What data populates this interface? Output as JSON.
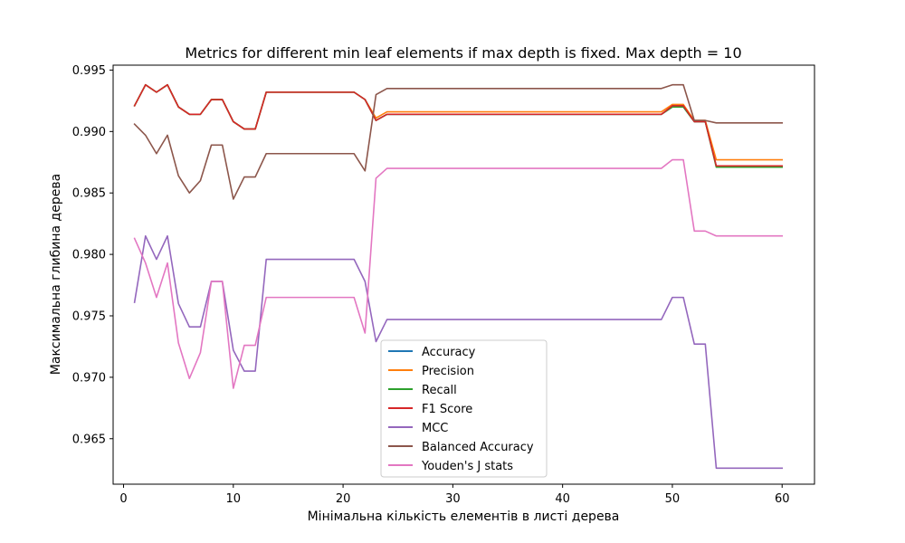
{
  "chart_data": {
    "type": "line",
    "title": "Metrics for different min leaf elements if max depth is fixed. Max depth = 10",
    "xlabel": "Мінімальна кількість елементів в листі дерева",
    "ylabel": "Максимальна глибина дерева",
    "xlim": [
      -0.95,
      62.95
    ],
    "ylim": [
      0.9613,
      0.9954
    ],
    "xticks": [
      0,
      10,
      20,
      30,
      40,
      50,
      60
    ],
    "xtick_labels": [
      "0",
      "10",
      "20",
      "30",
      "40",
      "50",
      "60"
    ],
    "yticks": [
      0.965,
      0.97,
      0.975,
      0.98,
      0.985,
      0.99,
      0.995
    ],
    "ytick_labels": [
      "0.965",
      "0.970",
      "0.975",
      "0.980",
      "0.985",
      "0.990",
      "0.995"
    ],
    "grid": false,
    "legend_position": "lower center",
    "x": [
      1,
      2,
      3,
      4,
      5,
      6,
      7,
      8,
      9,
      10,
      11,
      12,
      13,
      14,
      15,
      16,
      17,
      18,
      19,
      20,
      21,
      22,
      23,
      24,
      25,
      26,
      27,
      28,
      29,
      30,
      31,
      32,
      33,
      34,
      35,
      36,
      37,
      38,
      39,
      40,
      41,
      42,
      43,
      44,
      45,
      46,
      47,
      48,
      49,
      50,
      51,
      52,
      53,
      54,
      55,
      56,
      57,
      58,
      59,
      60
    ],
    "series": [
      {
        "name": "Accuracy",
        "color": "#1f77b4",
        "values": [
          0.9921,
          0.9938,
          0.9932,
          0.9938,
          0.992,
          0.9914,
          0.9914,
          0.9926,
          0.9926,
          0.9908,
          0.9902,
          0.9902,
          0.9932,
          0.9932,
          0.9932,
          0.9932,
          0.9932,
          0.9932,
          0.9932,
          0.9932,
          0.9932,
          0.9926,
          0.9909,
          0.9914,
          0.9914,
          0.9914,
          0.9914,
          0.9914,
          0.9914,
          0.9914,
          0.9914,
          0.9914,
          0.9914,
          0.9914,
          0.9914,
          0.9914,
          0.9914,
          0.9914,
          0.9914,
          0.9914,
          0.9914,
          0.9914,
          0.9914,
          0.9914,
          0.9914,
          0.9914,
          0.9914,
          0.9914,
          0.9914,
          0.992,
          0.992,
          0.9908,
          0.9908,
          0.9872,
          0.9872,
          0.9872,
          0.9872,
          0.9872,
          0.9872,
          0.9872
        ]
      },
      {
        "name": "Precision",
        "color": "#ff7f0e",
        "values": [
          0.9921,
          0.9938,
          0.9932,
          0.9938,
          0.992,
          0.9914,
          0.9914,
          0.9926,
          0.9926,
          0.9908,
          0.9902,
          0.9902,
          0.9932,
          0.9932,
          0.9932,
          0.9932,
          0.9932,
          0.9932,
          0.9932,
          0.9932,
          0.9932,
          0.9926,
          0.9911,
          0.9916,
          0.9916,
          0.9916,
          0.9916,
          0.9916,
          0.9916,
          0.9916,
          0.9916,
          0.9916,
          0.9916,
          0.9916,
          0.9916,
          0.9916,
          0.9916,
          0.9916,
          0.9916,
          0.9916,
          0.9916,
          0.9916,
          0.9916,
          0.9916,
          0.9916,
          0.9916,
          0.9916,
          0.9916,
          0.9916,
          0.9922,
          0.9922,
          0.9909,
          0.9909,
          0.9877,
          0.9877,
          0.9877,
          0.9877,
          0.9877,
          0.9877,
          0.9877
        ]
      },
      {
        "name": "Recall",
        "color": "#2ca02c",
        "values": [
          0.9921,
          0.9938,
          0.9932,
          0.9938,
          0.992,
          0.9914,
          0.9914,
          0.9926,
          0.9926,
          0.9908,
          0.9902,
          0.9902,
          0.9932,
          0.9932,
          0.9932,
          0.9932,
          0.9932,
          0.9932,
          0.9932,
          0.9932,
          0.9932,
          0.9926,
          0.9909,
          0.9914,
          0.9914,
          0.9914,
          0.9914,
          0.9914,
          0.9914,
          0.9914,
          0.9914,
          0.9914,
          0.9914,
          0.9914,
          0.9914,
          0.9914,
          0.9914,
          0.9914,
          0.9914,
          0.9914,
          0.9914,
          0.9914,
          0.9914,
          0.9914,
          0.9914,
          0.9914,
          0.9914,
          0.9914,
          0.9914,
          0.992,
          0.992,
          0.9908,
          0.9908,
          0.9871,
          0.9871,
          0.9871,
          0.9871,
          0.9871,
          0.9871,
          0.9871
        ]
      },
      {
        "name": "F1 Score",
        "color": "#d62728",
        "values": [
          0.9921,
          0.9938,
          0.9932,
          0.9938,
          0.992,
          0.9914,
          0.9914,
          0.9926,
          0.9926,
          0.9908,
          0.9902,
          0.9902,
          0.9932,
          0.9932,
          0.9932,
          0.9932,
          0.9932,
          0.9932,
          0.9932,
          0.9932,
          0.9932,
          0.9926,
          0.9909,
          0.9914,
          0.9914,
          0.9914,
          0.9914,
          0.9914,
          0.9914,
          0.9914,
          0.9914,
          0.9914,
          0.9914,
          0.9914,
          0.9914,
          0.9914,
          0.9914,
          0.9914,
          0.9914,
          0.9914,
          0.9914,
          0.9914,
          0.9914,
          0.9914,
          0.9914,
          0.9914,
          0.9914,
          0.9914,
          0.9914,
          0.9921,
          0.9921,
          0.9908,
          0.9908,
          0.9872,
          0.9872,
          0.9872,
          0.9872,
          0.9872,
          0.9872,
          0.9872
        ]
      },
      {
        "name": "MCC",
        "color": "#9467bd",
        "values": [
          0.9761,
          0.9815,
          0.9796,
          0.9815,
          0.976,
          0.9741,
          0.9741,
          0.9778,
          0.9778,
          0.9722,
          0.9705,
          0.9705,
          0.9796,
          0.9796,
          0.9796,
          0.9796,
          0.9796,
          0.9796,
          0.9796,
          0.9796,
          0.9796,
          0.9778,
          0.9729,
          0.9747,
          0.9747,
          0.9747,
          0.9747,
          0.9747,
          0.9747,
          0.9747,
          0.9747,
          0.9747,
          0.9747,
          0.9747,
          0.9747,
          0.9747,
          0.9747,
          0.9747,
          0.9747,
          0.9747,
          0.9747,
          0.9747,
          0.9747,
          0.9747,
          0.9747,
          0.9747,
          0.9747,
          0.9747,
          0.9747,
          0.9765,
          0.9765,
          0.9727,
          0.9727,
          0.9626,
          0.9626,
          0.9626,
          0.9626,
          0.9626,
          0.9626,
          0.9626
        ]
      },
      {
        "name": "Balanced Accuracy",
        "color": "#8c564b",
        "values": [
          0.9906,
          0.9897,
          0.9882,
          0.9897,
          0.9864,
          0.985,
          0.986,
          0.9889,
          0.9889,
          0.9845,
          0.9863,
          0.9863,
          0.9882,
          0.9882,
          0.9882,
          0.9882,
          0.9882,
          0.9882,
          0.9882,
          0.9882,
          0.9882,
          0.9868,
          0.993,
          0.9935,
          0.9935,
          0.9935,
          0.9935,
          0.9935,
          0.9935,
          0.9935,
          0.9935,
          0.9935,
          0.9935,
          0.9935,
          0.9935,
          0.9935,
          0.9935,
          0.9935,
          0.9935,
          0.9935,
          0.9935,
          0.9935,
          0.9935,
          0.9935,
          0.9935,
          0.9935,
          0.9935,
          0.9935,
          0.9935,
          0.9938,
          0.9938,
          0.9909,
          0.9909,
          0.9907,
          0.9907,
          0.9907,
          0.9907,
          0.9907,
          0.9907,
          0.9907
        ]
      },
      {
        "name": "Youden's J stats",
        "color": "#e377c2",
        "values": [
          0.9813,
          0.9793,
          0.9765,
          0.9793,
          0.9728,
          0.9699,
          0.972,
          0.9778,
          0.9778,
          0.9691,
          0.9726,
          0.9726,
          0.9765,
          0.9765,
          0.9765,
          0.9765,
          0.9765,
          0.9765,
          0.9765,
          0.9765,
          0.9765,
          0.9736,
          0.9862,
          0.987,
          0.987,
          0.987,
          0.987,
          0.987,
          0.987,
          0.987,
          0.987,
          0.987,
          0.987,
          0.987,
          0.987,
          0.987,
          0.987,
          0.987,
          0.987,
          0.987,
          0.987,
          0.987,
          0.987,
          0.987,
          0.987,
          0.987,
          0.987,
          0.987,
          0.987,
          0.9877,
          0.9877,
          0.9819,
          0.9819,
          0.9815,
          0.9815,
          0.9815,
          0.9815,
          0.9815,
          0.9815,
          0.9815
        ]
      }
    ]
  }
}
